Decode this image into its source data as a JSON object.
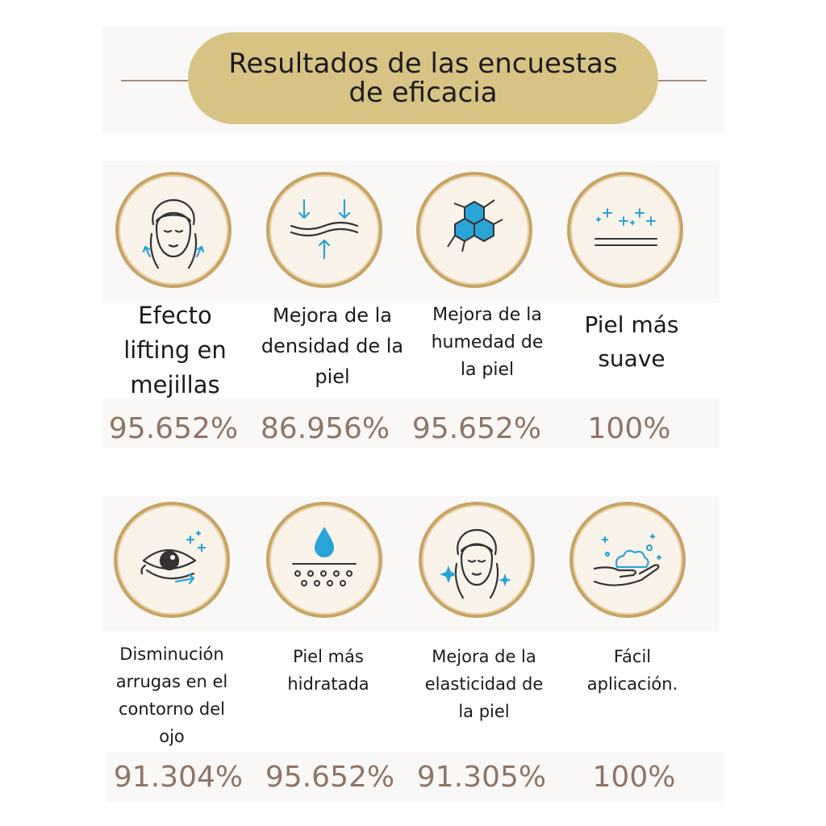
{
  "header": {
    "title": "Resultados de las encuestas de eficacia"
  },
  "colors": {
    "accent_gold": "#d7c384",
    "ring_gold": "#c6a466",
    "percent_brown": "#8f7565",
    "icon_blue": "#2aa3d6"
  },
  "row1": [
    {
      "icon": "face-lifting-icon",
      "label": "Efecto\nlifting en\nmejillas",
      "percent": "95.652%"
    },
    {
      "icon": "skin-density-icon",
      "label": "Mejora de la\ndensidad de la\npiel",
      "percent": "86.956%"
    },
    {
      "icon": "molecule-hexagon-icon",
      "label": "Mejora de la\nhumedad de\nla piel",
      "percent": "95.652%"
    },
    {
      "icon": "smooth-skin-sparkle-icon",
      "label": "Piel más\nsuave",
      "percent": "100%"
    }
  ],
  "row2": [
    {
      "icon": "eye-wrinkle-icon",
      "label": "Disminución\narrugas en el\ncontorno del\nojo",
      "percent": "91.304%"
    },
    {
      "icon": "water-drop-skin-icon",
      "label": "Piel más\nhidratada",
      "percent": "95.652%"
    },
    {
      "icon": "face-sparkle-icon",
      "label": "Mejora de la\nelasticidad de\nla piel",
      "percent": "91.305%"
    },
    {
      "icon": "hand-foam-icon",
      "label": "Fácil\naplicación.",
      "percent": "100%"
    }
  ]
}
